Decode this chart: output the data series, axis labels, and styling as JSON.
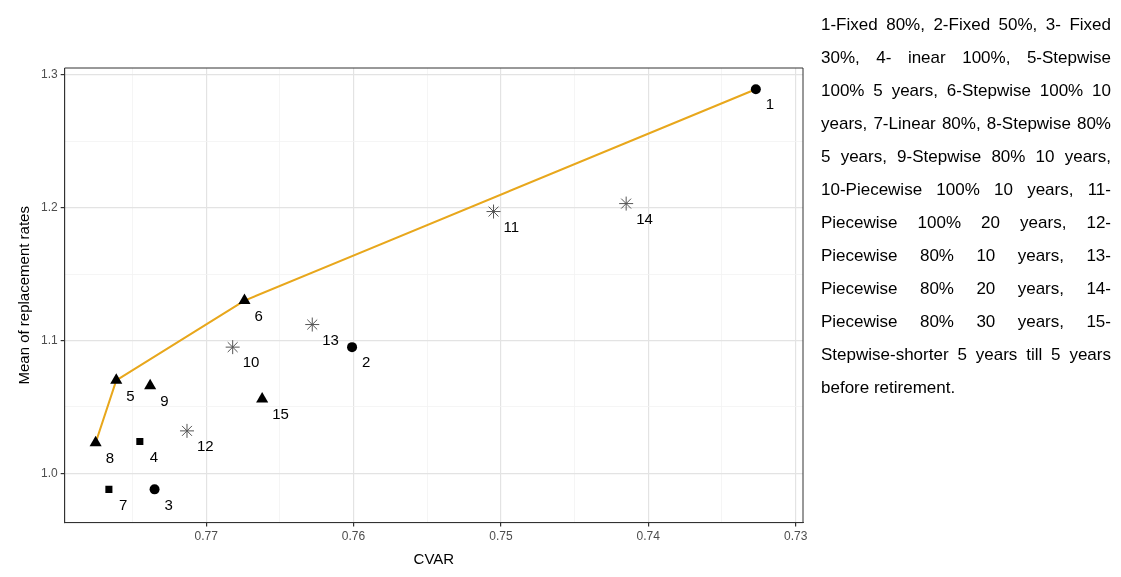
{
  "chart_data": {
    "type": "scatter",
    "xlabel": "CVAR",
    "ylabel": "Mean of replacement rates",
    "xlim": [
      0.7796,
      0.7295
    ],
    "xticks": [
      {
        "value": 0.775,
        "label": null
      },
      0.77,
      {
        "value": 0.765,
        "label": null
      },
      0.76,
      {
        "value": 0.755,
        "label": null
      },
      0.75,
      {
        "value": 0.745,
        "label": null
      },
      0.74,
      {
        "value": 0.735,
        "label": null
      },
      0.73
    ],
    "ylim": [
      0.963,
      1.305
    ],
    "yticks": [
      {
        "value": 1,
        "label": "1.0"
      },
      {
        "value": 1.05,
        "label": null
      },
      {
        "value": 1.1,
        "label": "1.1"
      },
      {
        "value": 1.15,
        "label": null
      },
      {
        "value": 1.2,
        "label": "1.2"
      },
      {
        "value": 1.25,
        "label": null
      },
      {
        "value": 1.3,
        "label": "1.3"
      }
    ],
    "grid": true,
    "legend": false,
    "series": [
      {
        "type": "line",
        "color": "#e8a71c",
        "marker": "none",
        "x": [
          0.7775,
          0.7761,
          0.7674,
          0.7327
        ],
        "values": [
          1.023,
          1.07,
          1.13,
          1.289
        ]
      },
      {
        "color": "#000000",
        "marker": "circle",
        "x": [
          0.7327,
          0.7601,
          0.7735
        ],
        "values": [
          1.289,
          1.095,
          0.988
        ]
      },
      {
        "color": "#000000",
        "marker": "square",
        "x": [
          0.7745,
          0.7766
        ],
        "values": [
          1.024,
          0.988
        ]
      },
      {
        "color": "#000000",
        "marker": "triangle",
        "x": [
          0.7761,
          0.7674,
          0.7775,
          0.7738,
          0.7662
        ],
        "values": [
          1.07,
          1.13,
          1.023,
          1.066,
          1.056
        ]
      },
      {
        "color": "#555555",
        "marker": "cross",
        "x": [
          0.7682,
          0.7505,
          0.7713,
          0.7628,
          0.7415
        ],
        "values": [
          1.095,
          1.197,
          1.032,
          1.112,
          1.203
        ]
      }
    ],
    "annotations": [
      {
        "text": "1",
        "x": 0.7327,
        "y": 1.289
      },
      {
        "text": "2",
        "x": 0.7601,
        "y": 1.095
      },
      {
        "text": "3",
        "x": 0.7735,
        "y": 0.988
      },
      {
        "text": "4",
        "x": 0.7745,
        "y": 1.024
      },
      {
        "text": "5",
        "x": 0.7761,
        "y": 1.07
      },
      {
        "text": "6",
        "x": 0.7674,
        "y": 1.13
      },
      {
        "text": "7",
        "x": 0.7766,
        "y": 0.988
      },
      {
        "text": "8",
        "x": 0.7775,
        "y": 1.023
      },
      {
        "text": "9",
        "x": 0.7738,
        "y": 1.066
      },
      {
        "text": "10",
        "x": 0.7682,
        "y": 1.095
      },
      {
        "text": "11",
        "x": 0.7505,
        "y": 1.197
      },
      {
        "text": "12",
        "x": 0.7713,
        "y": 1.032
      },
      {
        "text": "13",
        "x": 0.7628,
        "y": 1.112
      },
      {
        "text": "14",
        "x": 0.7415,
        "y": 1.203
      },
      {
        "text": "15",
        "x": 0.7662,
        "y": 1.056
      },
      "1-Fixed 80%, 2-Fixed 50%, 3- Fixed 30%, 4- inear 100%, 5-Stepwise 100% 5 years, 6-Stepwise 100% 10 years, 7-Linear 80%, 8-Stepwise 80% 5 years, 9-Stepwise 80% 10 years, 10-Piecewise 100% 10 years, 11-Piecewise 100% 20 years, 12-Piecewise 80% 10 years, 13-Piecewise 80% 20 years, 14-Piecewise 80% 30 years, 15-Stepwise-shorter 5 years till 5 years before retirement."
    ]
  }
}
